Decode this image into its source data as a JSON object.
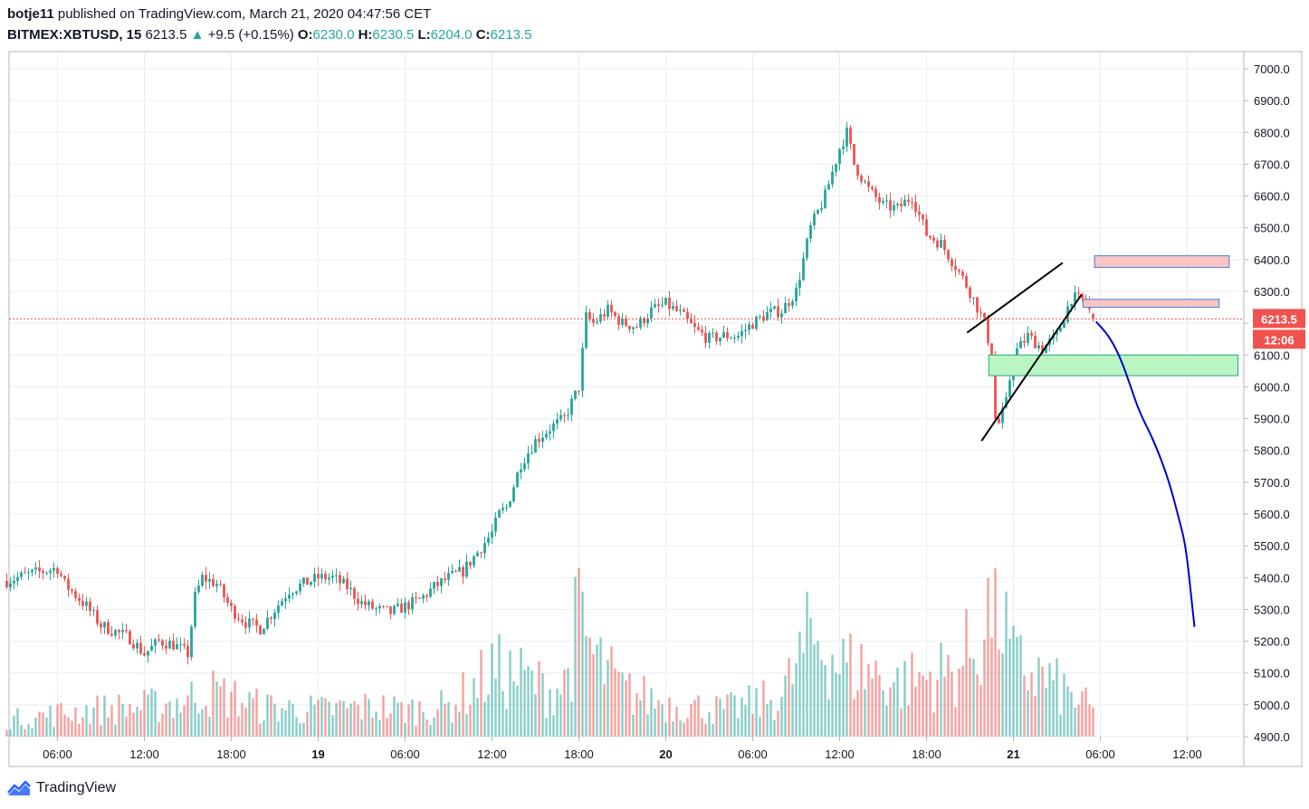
{
  "header": {
    "publisher": "botje11",
    "published_text": "published on TradingView.com, March 21, 2020 04:47:56 CET"
  },
  "legend": {
    "symbol": "BITMEX:XBTUSD, 15",
    "last": "6213.5",
    "change": "+9.5 (+0.15%)",
    "o_label": "O:",
    "o": "6230.0",
    "h_label": "H:",
    "h": "6230.5",
    "l_label": "L:",
    "l": "6204.0",
    "c_label": "C:",
    "c": "6213.5"
  },
  "footer": {
    "brand": "TradingView",
    "logo": "tradingview-logo-icon"
  },
  "colors": {
    "up": "#26a69a",
    "down": "#ef5350",
    "grid": "#e6eef3",
    "price_line": "#ef5350",
    "projection": "#0000cc",
    "zone_red": "#f8c4c4",
    "zone_red_border": "#4a7fd6",
    "zone_green": "#b9f6c1",
    "zone_green_border": "#2e9e8f"
  },
  "chart_data": {
    "type": "candlestick",
    "symbol": "BITMEX:XBTUSD",
    "interval": "15",
    "last_price_label": "6213.5",
    "countdown_label": "12:06",
    "ylim": [
      4900,
      7050
    ],
    "y_ticks": [
      "7000.0",
      "6900.0",
      "6800.0",
      "6700.0",
      "6600.0",
      "6500.0",
      "6400.0",
      "6300.0",
      "6200.0",
      "6100.0",
      "6000.0",
      "5900.0",
      "5800.0",
      "5700.0",
      "5600.0",
      "5500.0",
      "5400.0",
      "5300.0",
      "5200.0",
      "5100.0",
      "5000.0",
      "4900.0"
    ],
    "x_ticks": [
      "06:00",
      "12:00",
      "18:00",
      "19",
      "06:00",
      "12:00",
      "18:00",
      "20",
      "06:00",
      "12:00",
      "18:00",
      "21",
      "06:00",
      "12:00"
    ],
    "x_tick_hours": [
      6,
      12,
      18,
      24,
      30,
      36,
      42,
      48,
      54,
      60,
      66,
      72,
      78,
      84
    ],
    "x_tick_bold": [
      false,
      false,
      false,
      true,
      false,
      false,
      false,
      true,
      false,
      false,
      false,
      true,
      false,
      false
    ],
    "x_range_hours": [
      2.5,
      87.5
    ],
    "volume_axis_floor": 4900,
    "volume_peak_price": 5430,
    "price_path": [
      [
        2.5,
        5390
      ],
      [
        4,
        5410
      ],
      [
        6,
        5430
      ],
      [
        6.5,
        5380
      ],
      [
        8,
        5310
      ],
      [
        9,
        5250
      ],
      [
        10,
        5230
      ],
      [
        11,
        5210
      ],
      [
        12,
        5160
      ],
      [
        13,
        5200
      ],
      [
        14,
        5190
      ],
      [
        15,
        5160
      ],
      [
        15.5,
        5340
      ],
      [
        16,
        5400
      ],
      [
        17,
        5380
      ],
      [
        18,
        5300
      ],
      [
        19,
        5260
      ],
      [
        20,
        5240
      ],
      [
        21,
        5300
      ],
      [
        22,
        5360
      ],
      [
        23,
        5380
      ],
      [
        24,
        5400
      ],
      [
        25,
        5400
      ],
      [
        26,
        5370
      ],
      [
        27,
        5320
      ],
      [
        28,
        5300
      ],
      [
        29,
        5290
      ],
      [
        30,
        5310
      ],
      [
        31,
        5330
      ],
      [
        32,
        5370
      ],
      [
        33,
        5400
      ],
      [
        34,
        5420
      ],
      [
        35,
        5480
      ],
      [
        36,
        5540
      ],
      [
        36.5,
        5600
      ],
      [
        37,
        5620
      ],
      [
        38,
        5760
      ],
      [
        39,
        5830
      ],
      [
        40,
        5870
      ],
      [
        41,
        5900
      ],
      [
        42,
        6000
      ],
      [
        42.5,
        6220
      ],
      [
        43,
        6200
      ],
      [
        44,
        6240
      ],
      [
        45,
        6200
      ],
      [
        46,
        6190
      ],
      [
        47,
        6240
      ],
      [
        48,
        6260
      ],
      [
        49,
        6230
      ],
      [
        50,
        6180
      ],
      [
        51,
        6150
      ],
      [
        52,
        6160
      ],
      [
        53,
        6160
      ],
      [
        54,
        6200
      ],
      [
        55,
        6230
      ],
      [
        56,
        6240
      ],
      [
        57,
        6300
      ],
      [
        58,
        6500
      ],
      [
        59,
        6600
      ],
      [
        60,
        6750
      ],
      [
        60.5,
        6800
      ],
      [
        61,
        6700
      ],
      [
        62,
        6620
      ],
      [
        63,
        6570
      ],
      [
        64,
        6560
      ],
      [
        65,
        6600
      ],
      [
        66,
        6480
      ],
      [
        67,
        6450
      ],
      [
        68,
        6380
      ],
      [
        69,
        6300
      ],
      [
        70,
        6200
      ],
      [
        70.5,
        6100
      ],
      [
        70.8,
        5860
      ],
      [
        71.5,
        5950
      ],
      [
        72,
        6100
      ],
      [
        73,
        6160
      ],
      [
        74,
        6120
      ],
      [
        75,
        6160
      ],
      [
        76,
        6280
      ],
      [
        77,
        6270
      ],
      [
        77.5,
        6210
      ]
    ],
    "volume_path": [
      [
        2.5,
        25
      ],
      [
        8,
        40
      ],
      [
        12,
        45
      ],
      [
        15,
        55
      ],
      [
        16,
        70
      ],
      [
        18,
        60
      ],
      [
        20,
        45
      ],
      [
        24,
        40
      ],
      [
        28,
        45
      ],
      [
        30,
        40
      ],
      [
        33,
        45
      ],
      [
        35,
        80
      ],
      [
        36,
        100
      ],
      [
        38,
        90
      ],
      [
        40,
        70
      ],
      [
        41,
        80
      ],
      [
        42,
        180
      ],
      [
        43,
        120
      ],
      [
        45,
        70
      ],
      [
        48,
        50
      ],
      [
        52,
        40
      ],
      [
        56,
        60
      ],
      [
        58,
        150
      ],
      [
        59,
        140
      ],
      [
        60,
        110
      ],
      [
        62,
        100
      ],
      [
        64,
        80
      ],
      [
        66,
        90
      ],
      [
        68,
        100
      ],
      [
        70,
        160
      ],
      [
        70.8,
        230
      ],
      [
        71.5,
        150
      ],
      [
        72,
        110
      ],
      [
        74,
        90
      ],
      [
        76,
        60
      ],
      [
        77.5,
        40
      ]
    ],
    "annotations": {
      "wedge_upper": [
        [
          68.8,
          6170
        ],
        [
          75.4,
          6390
        ]
      ],
      "wedge_lower": [
        [
          69.8,
          5830
        ],
        [
          76.7,
          6290
        ]
      ],
      "zone_red_upper": {
        "x": [
          77.6,
          86.9
        ],
        "y": [
          6375,
          6412
        ]
      },
      "zone_red_lower": {
        "x": [
          76.8,
          86.2
        ],
        "y": [
          6250,
          6275
        ]
      },
      "zone_green": {
        "x": [
          70.3,
          87.5
        ],
        "y": [
          6035,
          6100
        ]
      },
      "projection": [
        [
          77.7,
          6205
        ],
        [
          78.6,
          6160
        ],
        [
          79.4,
          6090
        ],
        [
          80.1,
          6000
        ],
        [
          80.7,
          5920
        ],
        [
          81.7,
          5830
        ],
        [
          82.7,
          5710
        ],
        [
          83.4,
          5590
        ],
        [
          83.9,
          5500
        ],
        [
          84.3,
          5330
        ],
        [
          84.5,
          5245
        ]
      ]
    }
  }
}
